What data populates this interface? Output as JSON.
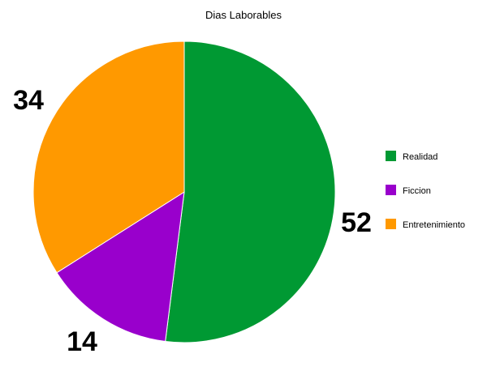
{
  "chart_data": {
    "type": "pie",
    "title": "Dias Laborables",
    "categories": [
      "Realidad",
      "Ficcion",
      "Entretenimiento"
    ],
    "values": [
      52,
      14,
      34
    ],
    "value_labels": [
      "52",
      "14",
      "34"
    ],
    "colors": [
      "#009933",
      "#9900CC",
      "#FF9900"
    ],
    "start_angle_deg": 0,
    "direction": "clockwise",
    "legend": {
      "placement": "right",
      "items": [
        {
          "label": "Realidad",
          "color": "#009933"
        },
        {
          "label": "Ficcion",
          "color": "#9900CC"
        },
        {
          "label": "Entretenimiento",
          "color": "#FF9900"
        }
      ]
    }
  }
}
